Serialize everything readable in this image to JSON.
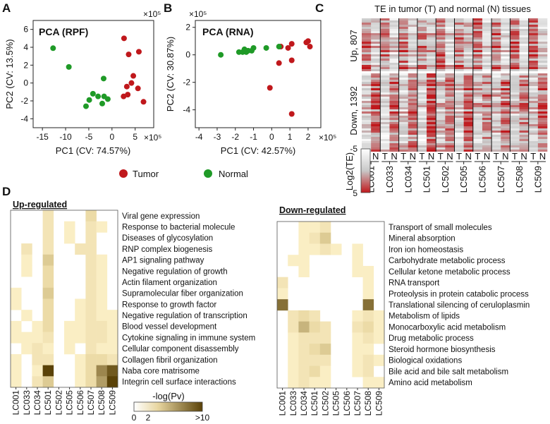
{
  "panel_letters": [
    "A",
    "B",
    "C",
    "D"
  ],
  "legend": {
    "entries": [
      {
        "label": "Tumor",
        "color": "#c0181c"
      },
      {
        "label": "Normal",
        "color": "#1f9a27"
      }
    ]
  },
  "chart_data": [
    {
      "id": "pca_rpf",
      "type": "scatter",
      "title": "PCA (RPF)",
      "xlabel": "PC1 (CV: 74.57%)",
      "ylabel": "PC2 (CV: 13.5%)",
      "x_multiplier": "×10⁵",
      "y_multiplier": "×10⁵",
      "xlim": [
        -17,
        9
      ],
      "ylim": [
        -5,
        7
      ],
      "xticks": [
        -15,
        -10,
        -5,
        0,
        5
      ],
      "yticks": [
        -4,
        -2,
        0,
        2,
        4,
        6
      ],
      "series": [
        {
          "name": "Tumor",
          "color": "#c0181c",
          "points": [
            [
              2.6,
              5.0
            ],
            [
              3.6,
              3.2
            ],
            [
              5.8,
              3.5
            ],
            [
              4.6,
              0.8
            ],
            [
              4.2,
              0.0
            ],
            [
              3.2,
              -0.4
            ],
            [
              5.6,
              -0.6
            ],
            [
              2.5,
              -1.5
            ],
            [
              3.4,
              -1.3
            ],
            [
              6.8,
              -2.1
            ]
          ]
        },
        {
          "name": "Normal",
          "color": "#1f9a27",
          "points": [
            [
              -12.7,
              3.9
            ],
            [
              -9.3,
              1.8
            ],
            [
              -1.8,
              0.5
            ],
            [
              -4.1,
              -1.2
            ],
            [
              -3.0,
              -1.5
            ],
            [
              -1.7,
              -1.5
            ],
            [
              -0.9,
              -1.8
            ],
            [
              -5.6,
              -2.6
            ],
            [
              -4.9,
              -1.9
            ],
            [
              -2.1,
              -2.3
            ]
          ]
        }
      ]
    },
    {
      "id": "pca_rna",
      "type": "scatter",
      "title": "PCA (RNA)",
      "xlabel": "PC1 (CV: 42.57%)",
      "ylabel": "PC2 (CV: 30.87%)",
      "x_multiplier": "×10⁵",
      "y_multiplier": "×10⁵",
      "xlim": [
        -4.2,
        2.7
      ],
      "ylim": [
        -5.3,
        2.5
      ],
      "xticks": [
        -4,
        -3,
        -2,
        -1,
        0,
        1,
        2
      ],
      "yticks": [
        -4,
        -2,
        0,
        2
      ],
      "series": [
        {
          "name": "Tumor",
          "color": "#c0181c",
          "points": [
            [
              1.9,
              0.9
            ],
            [
              2.0,
              1.0
            ],
            [
              2.1,
              0.6
            ],
            [
              1.1,
              0.8
            ],
            [
              0.9,
              0.5
            ],
            [
              0.5,
              0.6
            ],
            [
              1.1,
              -0.4
            ],
            [
              0.4,
              -0.6
            ],
            [
              -0.1,
              -2.4
            ],
            [
              1.1,
              -4.3
            ]
          ]
        },
        {
          "name": "Normal",
          "color": "#1f9a27",
          "points": [
            [
              -2.8,
              0.0
            ],
            [
              -1.8,
              0.2
            ],
            [
              -1.6,
              0.2
            ],
            [
              -1.4,
              0.2
            ],
            [
              -1.3,
              0.3
            ],
            [
              -1.0,
              0.5
            ],
            [
              -0.3,
              0.5
            ],
            [
              0.4,
              0.6
            ],
            [
              -1.5,
              0.4
            ],
            [
              -1.1,
              0.3
            ]
          ]
        }
      ]
    },
    {
      "id": "te_heatmap",
      "type": "heatmap",
      "title": "TE in tumor (T) and normal (N) tissues",
      "samples": [
        "LC001",
        "LC033",
        "LC034",
        "LC501",
        "LC502",
        "LC505",
        "LC506",
        "LC507",
        "LC508",
        "LC509"
      ],
      "column_labels": [
        "T",
        "N"
      ],
      "row_groups": [
        {
          "label": "Up, 807",
          "count": 807
        },
        {
          "label": "Down, 1392",
          "count": 1392
        }
      ],
      "color_scale": {
        "label": "Log2(TE)",
        "min": -5,
        "max": 5,
        "min_label": "-5",
        "max_label": "5",
        "low_color": "#ffffff",
        "mid_color": "#c8c8c8",
        "high_color": "#c0181c"
      }
    },
    {
      "id": "up_regulated",
      "type": "heatmap",
      "title": "Up-regulated",
      "columns": [
        "LC001",
        "LC033",
        "LC034",
        "LC501",
        "LC502",
        "LC505",
        "LC506",
        "LC507",
        "LC508",
        "LC509"
      ],
      "rows": [
        "Viral gene expression",
        "Response to bacterial molecule",
        "Diseases of glycosylation",
        "RNP complex biogenesis",
        "AP1 signaling pathway",
        "Negative regulation of growth",
        "Actin filament organization",
        "Supramolecular fiber organization",
        "Response to growth factor",
        "Negative regulation of transcription",
        "Blood vessel development",
        "Cytokine signaling in immune system",
        "Cellular component disassembly",
        "Collagen fibril organization",
        "Naba core matrisome",
        "Integrin cell surface interactions"
      ],
      "values": [
        [
          0,
          0,
          0,
          2,
          0,
          0,
          0,
          3,
          0,
          0
        ],
        [
          0,
          0,
          0,
          2,
          0,
          1,
          0,
          2,
          1,
          0
        ],
        [
          0,
          0,
          0,
          2,
          0,
          1,
          0,
          2,
          0,
          0
        ],
        [
          0,
          2,
          0,
          2,
          0,
          0,
          2,
          2,
          0,
          0
        ],
        [
          0,
          1,
          0,
          4,
          0,
          0,
          0,
          2,
          1,
          0
        ],
        [
          0,
          1,
          0,
          3,
          0,
          0,
          0,
          2,
          1,
          0
        ],
        [
          0,
          0,
          0,
          3,
          0,
          0,
          0,
          2,
          1,
          0
        ],
        [
          1,
          0,
          0,
          4,
          0,
          0,
          0,
          2,
          1,
          0
        ],
        [
          1,
          0,
          0,
          3,
          0,
          0,
          1,
          2,
          1,
          0
        ],
        [
          0,
          1,
          0,
          3,
          0,
          0,
          1,
          2,
          1,
          1
        ],
        [
          1,
          0,
          1,
          3,
          0,
          1,
          1,
          2,
          2,
          1
        ],
        [
          1,
          1,
          1,
          2,
          0,
          1,
          1,
          2,
          2,
          1
        ],
        [
          0,
          1,
          2,
          1,
          0,
          1,
          0,
          2,
          1,
          1
        ],
        [
          1,
          0,
          2,
          2,
          0,
          0,
          1,
          3,
          3,
          2
        ],
        [
          1,
          0,
          1,
          10,
          0,
          0,
          1,
          3,
          7,
          9
        ],
        [
          1,
          0,
          2,
          4,
          0,
          0,
          1,
          3,
          6,
          10
        ]
      ]
    },
    {
      "id": "down_regulated",
      "type": "heatmap",
      "title": "Down-regulated",
      "columns": [
        "LC001",
        "LC033",
        "LC034",
        "LC501",
        "LC502",
        "LC505",
        "LC506",
        "LC507",
        "LC508",
        "LC509"
      ],
      "rows": [
        "Transport of small molecules",
        "Mineral absorption",
        "Iron ion homeostasis",
        "Carbohydrate metabolic process",
        "Cellular ketone metabolic process",
        "RNA transport",
        "Proteolysis in protein catabolic process",
        "Translational silencing of ceruloplasmin",
        "Metabolism of lipids",
        "Monocarboxylic acid metabolism",
        "Drug metabolic process",
        "Steroid hormone biosynthesis",
        "Biological oxidations",
        "Bile acid and bile salt metabolism",
        "Amino acid metabolism"
      ],
      "values": [
        [
          0,
          0,
          1,
          1,
          2,
          0,
          0,
          0,
          0,
          0
        ],
        [
          0,
          0,
          1,
          2,
          4,
          0,
          0,
          0,
          0,
          0
        ],
        [
          0,
          0,
          1,
          1,
          2,
          1,
          0,
          1,
          0,
          0
        ],
        [
          0,
          1,
          1,
          0,
          0,
          0,
          0,
          1,
          0,
          0
        ],
        [
          0,
          0,
          1,
          0,
          0,
          0,
          0,
          1,
          1,
          0
        ],
        [
          2,
          0,
          0,
          0,
          0,
          0,
          0,
          0,
          1,
          0
        ],
        [
          1,
          0,
          0,
          0,
          0,
          0,
          0,
          0,
          1,
          0
        ],
        [
          8,
          0,
          0,
          0,
          0,
          0,
          0,
          0,
          8,
          0
        ],
        [
          0,
          2,
          3,
          2,
          0,
          0,
          0,
          1,
          2,
          1
        ],
        [
          0,
          2,
          5,
          3,
          2,
          0,
          0,
          2,
          3,
          1
        ],
        [
          0,
          1,
          2,
          2,
          2,
          0,
          0,
          1,
          2,
          1
        ],
        [
          0,
          1,
          2,
          3,
          4,
          0,
          0,
          1,
          1,
          0
        ],
        [
          0,
          1,
          2,
          2,
          2,
          0,
          0,
          1,
          2,
          1
        ],
        [
          0,
          1,
          2,
          3,
          1,
          0,
          0,
          1,
          2,
          0
        ],
        [
          0,
          1,
          2,
          1,
          1,
          0,
          0,
          0,
          1,
          1
        ]
      ]
    }
  ],
  "pv_colorbar": {
    "title": "-log(Pv)",
    "tick_labels": [
      "0",
      "2",
      ">10"
    ],
    "min": 0,
    "max": 10,
    "low_color": "#ffffff",
    "mid_color": "#e8d6a0",
    "high_color": "#5a4208"
  }
}
